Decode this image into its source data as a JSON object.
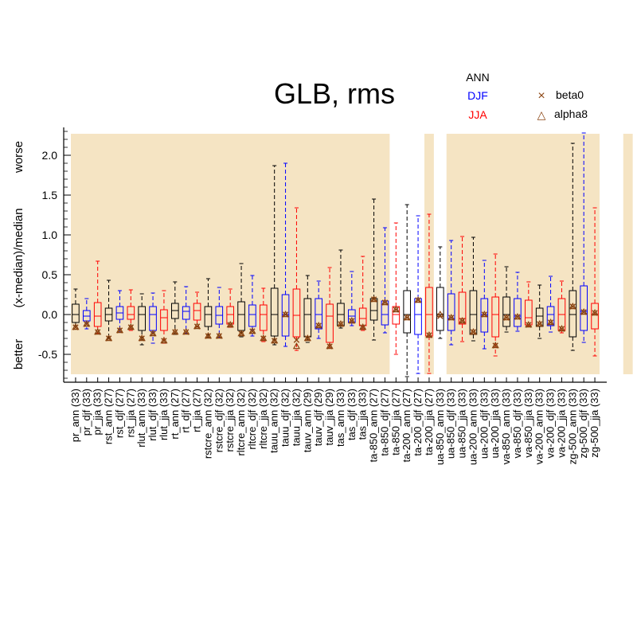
{
  "chart_data": {
    "type": "box",
    "title": "GLB, rms",
    "ylabel": "(x-median)/median",
    "ylabel_low": "better",
    "ylabel_high": "worse",
    "ylim": [
      -0.85,
      2.35
    ],
    "yticks": [
      -0.5,
      0.0,
      0.5,
      1.0,
      1.5,
      2.0
    ],
    "ytick_labels": [
      "-0.5",
      "0.0",
      "0.5",
      "1.0",
      "1.5",
      "2.0"
    ],
    "season_legend": [
      {
        "label": "ANN",
        "color": "#000000"
      },
      {
        "label": "DJF",
        "color": "#0000ff"
      },
      {
        "label": "JJA",
        "color": "#ff0000"
      }
    ],
    "marker_legend": [
      {
        "label": "beta0",
        "symbol": "×",
        "color": "#8b4513"
      },
      {
        "label": "alpha8",
        "symbol": "△",
        "color": "#8b4513"
      }
    ],
    "colors": {
      "ANN": "#000000",
      "DJF": "#0000ff",
      "JJA": "#ff0000",
      "marker": "#8b4513",
      "shade": "#f5e4c3"
    },
    "shaded_ranges": [
      [
        0,
        28
      ],
      [
        32,
        32
      ],
      [
        34,
        47
      ],
      [
        50,
        50
      ]
    ],
    "categories": [
      {
        "label": "pr_ann (33)",
        "season": "ANN",
        "box": [
          -0.1,
          0.0,
          0.13
        ],
        "whisker": [
          -0.14,
          0.32
        ],
        "beta0": -0.16,
        "alpha8": -0.16
      },
      {
        "label": "pr_djf (33)",
        "season": "DJF",
        "box": [
          -0.08,
          -0.02,
          0.05
        ],
        "whisker": [
          -0.18,
          0.2
        ],
        "beta0": -0.12,
        "alpha8": -0.12
      },
      {
        "label": "pr_jja (33)",
        "season": "JJA",
        "box": [
          -0.15,
          -0.02,
          0.15
        ],
        "whisker": [
          -0.24,
          0.67
        ],
        "beta0": -0.22,
        "alpha8": -0.22
      },
      {
        "label": "rst_ann (27)",
        "season": "ANN",
        "box": [
          -0.08,
          0.0,
          0.08
        ],
        "whisker": [
          -0.3,
          0.43
        ],
        "beta0": -0.3,
        "alpha8": -0.3
      },
      {
        "label": "rst_djf (27)",
        "season": "DJF",
        "box": [
          -0.06,
          0.02,
          0.1
        ],
        "whisker": [
          -0.22,
          0.3
        ],
        "beta0": -0.2,
        "alpha8": -0.2
      },
      {
        "label": "rst_jja (27)",
        "season": "JJA",
        "box": [
          -0.06,
          0.0,
          0.1
        ],
        "whisker": [
          -0.2,
          0.31
        ],
        "beta0": -0.16,
        "alpha8": -0.16
      },
      {
        "label": "rlut_ann (33)",
        "season": "ANN",
        "box": [
          -0.2,
          0.0,
          0.1
        ],
        "whisker": [
          -0.38,
          0.26
        ],
        "beta0": -0.3,
        "alpha8": -0.3
      },
      {
        "label": "rlut_djf (33)",
        "season": "DJF",
        "box": [
          -0.2,
          0.0,
          0.1
        ],
        "whisker": [
          -0.36,
          0.27
        ],
        "beta0": -0.24,
        "alpha8": -0.24
      },
      {
        "label": "rlut_jja (33)",
        "season": "JJA",
        "box": [
          -0.2,
          -0.04,
          0.06
        ],
        "whisker": [
          -0.36,
          0.3
        ],
        "beta0": -0.33,
        "alpha8": -0.33
      },
      {
        "label": "rt_ann (27)",
        "season": "ANN",
        "box": [
          -0.05,
          0.05,
          0.14
        ],
        "whisker": [
          -0.25,
          0.41
        ],
        "beta0": -0.22,
        "alpha8": -0.22
      },
      {
        "label": "rt_djf (27)",
        "season": "DJF",
        "box": [
          -0.06,
          0.04,
          0.1
        ],
        "whisker": [
          -0.24,
          0.35
        ],
        "beta0": -0.22,
        "alpha8": -0.22
      },
      {
        "label": "rt_jja (27)",
        "season": "JJA",
        "box": [
          -0.07,
          0.05,
          0.14
        ],
        "whisker": [
          -0.15,
          0.28
        ],
        "beta0": -0.15,
        "alpha8": -0.15
      },
      {
        "label": "rstcre_ann (32)",
        "season": "ANN",
        "box": [
          -0.15,
          0.0,
          0.1
        ],
        "whisker": [
          -0.29,
          0.45
        ],
        "beta0": -0.27,
        "alpha8": -0.27
      },
      {
        "label": "rstcre_djf (32)",
        "season": "DJF",
        "box": [
          -0.12,
          -0.01,
          0.1
        ],
        "whisker": [
          -0.29,
          0.34
        ],
        "beta0": -0.27,
        "alpha8": -0.27
      },
      {
        "label": "rstcre_jja (32)",
        "season": "JJA",
        "box": [
          -0.12,
          0.0,
          0.1
        ],
        "whisker": [
          -0.16,
          0.32
        ],
        "beta0": -0.13,
        "alpha8": -0.13
      },
      {
        "label": "rltcre_ann (32)",
        "season": "ANN",
        "box": [
          -0.2,
          0.0,
          0.16
        ],
        "whisker": [
          -0.28,
          0.64
        ],
        "beta0": -0.24,
        "alpha8": -0.24
      },
      {
        "label": "rltcre_djf (32)",
        "season": "DJF",
        "box": [
          -0.15,
          0.0,
          0.12
        ],
        "whisker": [
          -0.27,
          0.49
        ],
        "beta0": -0.21,
        "alpha8": -0.21
      },
      {
        "label": "rltcre_jja (32)",
        "season": "JJA",
        "box": [
          -0.2,
          0.0,
          0.12
        ],
        "whisker": [
          -0.34,
          0.33
        ],
        "beta0": -0.3,
        "alpha8": -0.3
      },
      {
        "label": "tauu_ann (32)",
        "season": "ANN",
        "box": [
          -0.27,
          0.0,
          0.33
        ],
        "whisker": [
          -0.38,
          1.87
        ],
        "beta0": -0.33,
        "alpha8": -0.33
      },
      {
        "label": "tauu_djf (32)",
        "season": "DJF",
        "box": [
          -0.27,
          0.0,
          0.25
        ],
        "whisker": [
          -0.4,
          1.9
        ],
        "beta0": 0.0,
        "alpha8": 0.0
      },
      {
        "label": "tauu_jja (32)",
        "season": "JJA",
        "box": [
          -0.28,
          -0.01,
          0.32
        ],
        "whisker": [
          -0.45,
          1.34
        ],
        "beta0": -0.32,
        "alpha8": -0.4
      },
      {
        "label": "tauv_ann (29)",
        "season": "ANN",
        "box": [
          -0.28,
          0.0,
          0.2
        ],
        "whisker": [
          -0.35,
          0.49
        ],
        "beta0": -0.3,
        "alpha8": -0.3
      },
      {
        "label": "tauv_djf (29)",
        "season": "DJF",
        "box": [
          -0.18,
          0.0,
          0.2
        ],
        "whisker": [
          -0.3,
          0.42
        ],
        "beta0": -0.14,
        "alpha8": -0.14
      },
      {
        "label": "tauv_jja (29)",
        "season": "JJA",
        "box": [
          -0.35,
          -0.02,
          0.13
        ],
        "whisker": [
          -0.42,
          0.59
        ],
        "beta0": -0.4,
        "alpha8": -0.4
      },
      {
        "label": "tas_ann (33)",
        "season": "ANN",
        "box": [
          -0.14,
          0.0,
          0.14
        ],
        "whisker": [
          -0.17,
          0.81
        ],
        "beta0": -0.12,
        "alpha8": -0.12
      },
      {
        "label": "tas_djf (33)",
        "season": "DJF",
        "box": [
          -0.1,
          -0.02,
          0.06
        ],
        "whisker": [
          -0.14,
          0.54
        ],
        "beta0": -0.08,
        "alpha8": -0.08
      },
      {
        "label": "tas_jja (33)",
        "season": "JJA",
        "box": [
          -0.14,
          -0.05,
          0.08
        ],
        "whisker": [
          -0.2,
          0.73
        ],
        "beta0": -0.16,
        "alpha8": -0.16
      },
      {
        "label": "ta-850_ann (27)",
        "season": "ANN",
        "box": [
          -0.07,
          0.05,
          0.2
        ],
        "whisker": [
          -0.32,
          1.45
        ],
        "beta0": 0.19,
        "alpha8": 0.19
      },
      {
        "label": "ta-850_djf (27)",
        "season": "DJF",
        "box": [
          -0.13,
          0.0,
          0.17
        ],
        "whisker": [
          -0.23,
          1.09
        ],
        "beta0": 0.15,
        "alpha8": 0.15
      },
      {
        "label": "ta-850_jja (27)",
        "season": "JJA",
        "box": [
          -0.12,
          0.0,
          0.1
        ],
        "whisker": [
          -0.5,
          1.15
        ],
        "beta0": 0.06,
        "alpha8": 0.06
      },
      {
        "label": "ta-200_ann (27)",
        "season": "ANN",
        "box": [
          -0.23,
          0.0,
          0.3
        ],
        "whisker": [
          -0.78,
          1.38
        ],
        "beta0": -0.04,
        "alpha8": -0.04
      },
      {
        "label": "ta-200_djf (27)",
        "season": "DJF",
        "box": [
          -0.25,
          0.0,
          0.2
        ],
        "whisker": [
          -0.74,
          1.24
        ],
        "beta0": 0.18,
        "alpha8": 0.18
      },
      {
        "label": "ta-200_jja (27)",
        "season": "JJA",
        "box": [
          -0.27,
          0.0,
          0.34
        ],
        "whisker": [
          -0.74,
          1.26
        ],
        "beta0": -0.26,
        "alpha8": -0.26
      },
      {
        "label": "ua-850_ann (33)",
        "season": "ANN",
        "box": [
          -0.2,
          0.0,
          0.34
        ],
        "whisker": [
          -0.3,
          0.85
        ],
        "beta0": -0.02,
        "alpha8": 0.0
      },
      {
        "label": "ua-850_djf (33)",
        "season": "DJF",
        "box": [
          -0.2,
          -0.05,
          0.26
        ],
        "whisker": [
          -0.38,
          0.93
        ],
        "beta0": -0.04,
        "alpha8": -0.04
      },
      {
        "label": "ua-850_jja (33)",
        "season": "JJA",
        "box": [
          -0.12,
          -0.05,
          0.28
        ],
        "whisker": [
          -0.34,
          0.98
        ],
        "beta0": -0.08,
        "alpha8": -0.08
      },
      {
        "label": "ua-200_ann (33)",
        "season": "ANN",
        "box": [
          -0.25,
          0.0,
          0.3
        ],
        "whisker": [
          -0.33,
          0.97
        ],
        "beta0": -0.22,
        "alpha8": -0.22
      },
      {
        "label": "ua-200_djf (33)",
        "season": "DJF",
        "box": [
          -0.22,
          0.0,
          0.2
        ],
        "whisker": [
          -0.43,
          0.68
        ],
        "beta0": 0.0,
        "alpha8": 0.0
      },
      {
        "label": "ua-200_jja (33)",
        "season": "JJA",
        "box": [
          -0.28,
          0.0,
          0.22
        ],
        "whisker": [
          -0.52,
          0.76
        ],
        "beta0": -0.39,
        "alpha8": -0.39
      },
      {
        "label": "va-850_ann (33)",
        "season": "ANN",
        "box": [
          -0.15,
          0.0,
          0.22
        ],
        "whisker": [
          -0.22,
          0.6
        ],
        "beta0": -0.04,
        "alpha8": -0.04
      },
      {
        "label": "va-850_djf (33)",
        "season": "DJF",
        "box": [
          -0.15,
          -0.02,
          0.2
        ],
        "whisker": [
          -0.21,
          0.53
        ],
        "beta0": -0.03,
        "alpha8": -0.03
      },
      {
        "label": "va-850_jja (33)",
        "season": "JJA",
        "box": [
          -0.13,
          -0.04,
          0.18
        ],
        "whisker": [
          -0.15,
          0.41
        ],
        "beta0": -0.13,
        "alpha8": -0.13
      },
      {
        "label": "va-200_ann (33)",
        "season": "ANN",
        "box": [
          -0.15,
          -0.02,
          0.08
        ],
        "whisker": [
          -0.3,
          0.37
        ],
        "beta0": -0.12,
        "alpha8": -0.12
      },
      {
        "label": "va-200_djf (33)",
        "season": "DJF",
        "box": [
          -0.14,
          0.0,
          0.1
        ],
        "whisker": [
          -0.22,
          0.48
        ],
        "beta0": -0.1,
        "alpha8": -0.1
      },
      {
        "label": "va-200_jja (33)",
        "season": "JJA",
        "box": [
          -0.2,
          0.0,
          0.2
        ],
        "whisker": [
          -0.23,
          0.42
        ],
        "beta0": -0.18,
        "alpha8": -0.18
      },
      {
        "label": "zg-500_ann (33)",
        "season": "ANN",
        "box": [
          -0.28,
          0.0,
          0.3
        ],
        "whisker": [
          -0.45,
          2.15
        ],
        "beta0": 0.1,
        "alpha8": 0.1
      },
      {
        "label": "zg-500_djf (33)",
        "season": "DJF",
        "box": [
          -0.2,
          0.04,
          0.36
        ],
        "whisker": [
          -0.35,
          2.28
        ],
        "beta0": 0.03,
        "alpha8": 0.03
      },
      {
        "label": "zg-500_jja (33)",
        "season": "JJA",
        "box": [
          -0.18,
          0.0,
          0.14
        ],
        "whisker": [
          -0.52,
          1.34
        ],
        "beta0": 0.02,
        "alpha8": 0.02
      }
    ]
  }
}
